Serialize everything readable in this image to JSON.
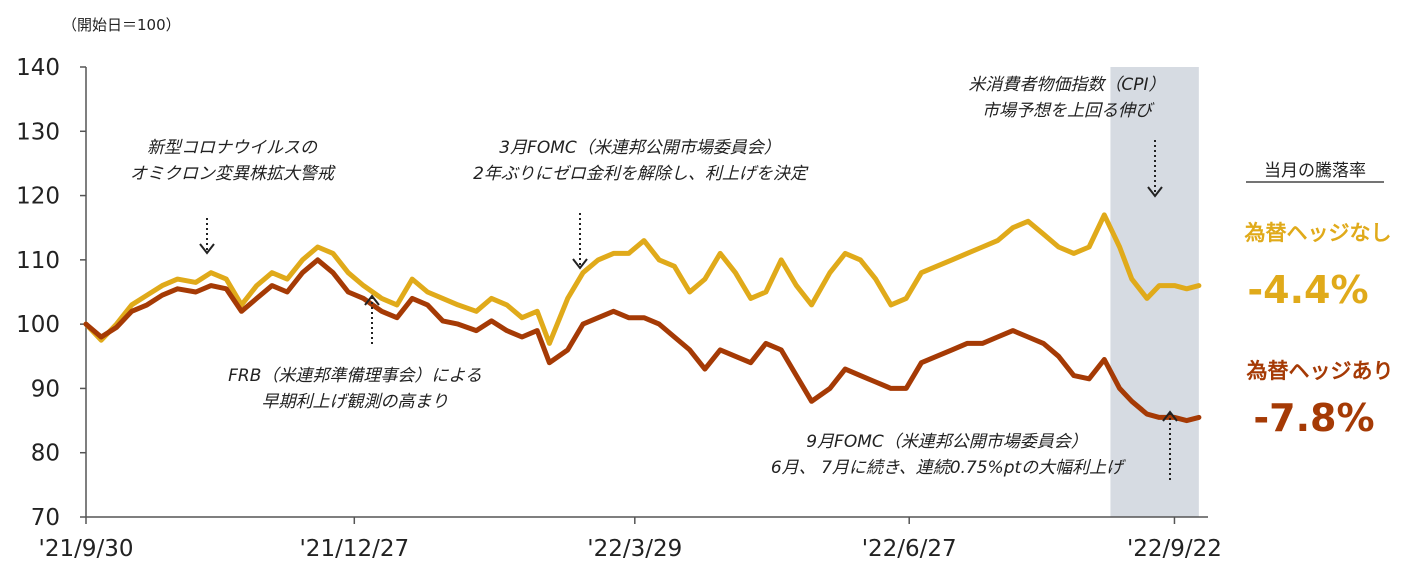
{
  "chart_data": {
    "type": "line",
    "unit_label": "（開始日＝100）",
    "ylim": [
      70,
      140
    ],
    "yticks": [
      70,
      80,
      90,
      100,
      110,
      120,
      130,
      140
    ],
    "xlim": [
      "2021-09-30",
      "2022-10-03"
    ],
    "xticks": [
      {
        "date": "2021-09-30",
        "label": "'21/9/30"
      },
      {
        "date": "2021-12-27",
        "label": "'21/12/27"
      },
      {
        "date": "2022-03-29",
        "label": "'22/3/29"
      },
      {
        "date": "2022-06-27",
        "label": "'22/6/27"
      },
      {
        "date": "2022-09-22",
        "label": "'22/9/22"
      }
    ],
    "shaded_period": [
      "2022-09-01",
      "2022-09-30"
    ],
    "colors": {
      "unhedged": "#e0aa1a",
      "hedged": "#a53a05",
      "shade": "#d6dbe2",
      "axis": "#555555"
    },
    "series": [
      {
        "name": "為替ヘッジなし",
        "key": "unhedged",
        "x": [
          "2021-09-30",
          "2021-10-05",
          "2021-10-10",
          "2021-10-15",
          "2021-10-20",
          "2021-10-25",
          "2021-10-30",
          "2021-11-05",
          "2021-11-10",
          "2021-11-15",
          "2021-11-20",
          "2021-11-25",
          "2021-11-30",
          "2021-12-05",
          "2021-12-10",
          "2021-12-15",
          "2021-12-20",
          "2021-12-25",
          "2021-12-30",
          "2022-01-05",
          "2022-01-10",
          "2022-01-15",
          "2022-01-20",
          "2022-01-25",
          "2022-01-30",
          "2022-02-05",
          "2022-02-10",
          "2022-02-15",
          "2022-02-20",
          "2022-02-25",
          "2022-03-01",
          "2022-03-07",
          "2022-03-12",
          "2022-03-17",
          "2022-03-22",
          "2022-03-27",
          "2022-04-01",
          "2022-04-06",
          "2022-04-11",
          "2022-04-16",
          "2022-04-21",
          "2022-04-26",
          "2022-05-01",
          "2022-05-06",
          "2022-05-11",
          "2022-05-16",
          "2022-05-21",
          "2022-05-26",
          "2022-06-01",
          "2022-06-06",
          "2022-06-11",
          "2022-06-16",
          "2022-06-21",
          "2022-06-26",
          "2022-07-01",
          "2022-07-06",
          "2022-07-11",
          "2022-07-16",
          "2022-07-21",
          "2022-07-26",
          "2022-07-31",
          "2022-08-05",
          "2022-08-10",
          "2022-08-15",
          "2022-08-20",
          "2022-08-25",
          "2022-08-30",
          "2022-09-04",
          "2022-09-08",
          "2022-09-13",
          "2022-09-17",
          "2022-09-22",
          "2022-09-26",
          "2022-09-30"
        ],
        "values": [
          100,
          97.5,
          100,
          103,
          104.5,
          106,
          107,
          106.5,
          108,
          107,
          103,
          106,
          108,
          107,
          110,
          112,
          111,
          108,
          106,
          104,
          103,
          107,
          105,
          104,
          103,
          102,
          104,
          103,
          101,
          102,
          97,
          104,
          108,
          110,
          111,
          111,
          113,
          110,
          109,
          105,
          107,
          111,
          108,
          104,
          105,
          110,
          106,
          103,
          108,
          111,
          110,
          107,
          103,
          104,
          108,
          109,
          110,
          111,
          112,
          113,
          115,
          116,
          114,
          112,
          111,
          112,
          117,
          112,
          107,
          104,
          106,
          106,
          105.5,
          106
        ]
      },
      {
        "name": "為替ヘッジあり",
        "key": "hedged",
        "x": [
          "2021-09-30",
          "2021-10-05",
          "2021-10-10",
          "2021-10-15",
          "2021-10-20",
          "2021-10-25",
          "2021-10-30",
          "2021-11-05",
          "2021-11-10",
          "2021-11-15",
          "2021-11-20",
          "2021-11-25",
          "2021-11-30",
          "2021-12-05",
          "2021-12-10",
          "2021-12-15",
          "2021-12-20",
          "2021-12-25",
          "2021-12-30",
          "2022-01-05",
          "2022-01-10",
          "2022-01-15",
          "2022-01-20",
          "2022-01-25",
          "2022-01-30",
          "2022-02-05",
          "2022-02-10",
          "2022-02-15",
          "2022-02-20",
          "2022-02-25",
          "2022-03-01",
          "2022-03-07",
          "2022-03-12",
          "2022-03-17",
          "2022-03-22",
          "2022-03-27",
          "2022-04-01",
          "2022-04-06",
          "2022-04-11",
          "2022-04-16",
          "2022-04-21",
          "2022-04-26",
          "2022-05-01",
          "2022-05-06",
          "2022-05-11",
          "2022-05-16",
          "2022-05-21",
          "2022-05-26",
          "2022-06-01",
          "2022-06-06",
          "2022-06-11",
          "2022-06-16",
          "2022-06-21",
          "2022-06-26",
          "2022-07-01",
          "2022-07-06",
          "2022-07-11",
          "2022-07-16",
          "2022-07-21",
          "2022-07-26",
          "2022-07-31",
          "2022-08-05",
          "2022-08-10",
          "2022-08-15",
          "2022-08-20",
          "2022-08-25",
          "2022-08-30",
          "2022-09-04",
          "2022-09-08",
          "2022-09-13",
          "2022-09-17",
          "2022-09-22",
          "2022-09-26",
          "2022-09-30"
        ],
        "values": [
          100,
          98,
          99.5,
          102,
          103,
          104.5,
          105.5,
          105,
          106,
          105.5,
          102,
          104,
          106,
          105,
          108,
          110,
          108,
          105,
          104,
          102,
          101,
          104,
          103,
          100.5,
          100,
          99,
          100.5,
          99,
          98,
          99,
          94,
          96,
          100,
          101,
          102,
          101,
          101,
          100,
          98,
          96,
          93,
          96,
          95,
          94,
          97,
          96,
          92,
          88,
          90,
          93,
          92,
          91,
          90,
          90,
          94,
          95,
          96,
          97,
          97,
          98,
          99,
          98,
          97,
          95,
          92,
          91.5,
          94.5,
          90,
          88,
          86,
          85.5,
          85.5,
          85,
          85.5
        ]
      }
    ],
    "annotations": [
      {
        "lines": [
          "新型コロナウイルスの",
          "オミクロン変異株拡大警戒"
        ],
        "arrow": "down",
        "date": "2021-11-12"
      },
      {
        "lines": [
          "FRB（米連邦準備理事会）による",
          "早期利上げ観測の高まり"
        ],
        "arrow": "up",
        "date": "2021-12-30"
      },
      {
        "lines": [
          "3月FOMC（米連邦公開市場委員会）",
          "2年ぶりにゼロ金利を解除し、利上げを決定"
        ],
        "arrow": "down",
        "date": "2022-03-16"
      },
      {
        "lines": [
          "米消費者物価指数（CPI）",
          "市場予想を上回る伸び"
        ],
        "arrow": "down",
        "date": "2022-09-13"
      },
      {
        "lines": [
          "9月FOMC（米連邦公開市場委員会）",
          "6月、 7月に続き、連続0.75%ptの大幅利上げ"
        ],
        "arrow": "up",
        "date": "2022-09-22"
      }
    ]
  },
  "side_panel": {
    "title": "当月の騰落率",
    "unhedged": {
      "label": "為替ヘッジなし",
      "change": "-4.4%"
    },
    "hedged": {
      "label": "為替ヘッジあり",
      "change": "-7.8%"
    }
  }
}
